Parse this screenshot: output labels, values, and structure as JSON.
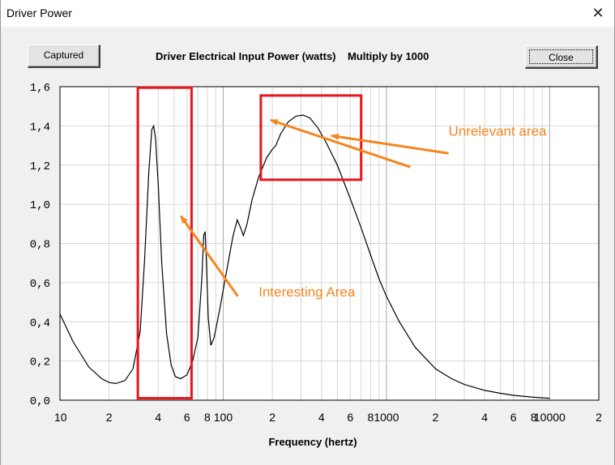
{
  "window": {
    "title": "Driver Power",
    "close_glyph": "✕"
  },
  "toolbar": {
    "captured_label": "Captured",
    "close_label": "Close"
  },
  "chart_data": {
    "type": "line",
    "title": "Driver Electrical Input Power (watts)    Multiply by 1000",
    "xlabel": "Frequency (hertz)",
    "ylabel": "",
    "x_scale": "log",
    "xlim": [
      10,
      20000
    ],
    "ylim": [
      0,
      1.6
    ],
    "grid": true,
    "y_ticks": [
      "0,0",
      "0,2",
      "0,4",
      "0,6",
      "0,8",
      "1,0",
      "1,2",
      "1,4",
      "1,6"
    ],
    "x_ticks": [
      {
        "value": 10,
        "label": "10"
      },
      {
        "value": 20,
        "label": "2"
      },
      {
        "value": 40,
        "label": "4"
      },
      {
        "value": 60,
        "label": "6"
      },
      {
        "value": 80,
        "label": "8"
      },
      {
        "value": 100,
        "label": "100"
      },
      {
        "value": 200,
        "label": "2"
      },
      {
        "value": 400,
        "label": "4"
      },
      {
        "value": 600,
        "label": "6"
      },
      {
        "value": 800,
        "label": "8"
      },
      {
        "value": 1000,
        "label": "1000"
      },
      {
        "value": 2000,
        "label": "2"
      },
      {
        "value": 4000,
        "label": "4"
      },
      {
        "value": 6000,
        "label": "6"
      },
      {
        "value": 8000,
        "label": "8"
      },
      {
        "value": 10000,
        "label": "10000"
      },
      {
        "value": 20000,
        "label": "2"
      }
    ],
    "series": [
      {
        "color": "#000000",
        "points": [
          [
            10,
            0.44
          ],
          [
            12,
            0.3
          ],
          [
            15,
            0.17
          ],
          [
            18,
            0.11
          ],
          [
            20,
            0.09
          ],
          [
            22,
            0.085
          ],
          [
            25,
            0.1
          ],
          [
            28,
            0.16
          ],
          [
            31,
            0.35
          ],
          [
            33,
            0.72
          ],
          [
            35,
            1.16
          ],
          [
            36.5,
            1.38
          ],
          [
            37.5,
            1.4
          ],
          [
            38.5,
            1.34
          ],
          [
            40,
            1.1
          ],
          [
            42,
            0.7
          ],
          [
            45,
            0.34
          ],
          [
            48,
            0.18
          ],
          [
            51,
            0.12
          ],
          [
            55,
            0.11
          ],
          [
            60,
            0.13
          ],
          [
            65,
            0.2
          ],
          [
            70,
            0.32
          ],
          [
            74,
            0.62
          ],
          [
            76,
            0.84
          ],
          [
            77.5,
            0.86
          ],
          [
            79,
            0.7
          ],
          [
            81,
            0.42
          ],
          [
            84,
            0.28
          ],
          [
            88,
            0.32
          ],
          [
            95,
            0.46
          ],
          [
            105,
            0.66
          ],
          [
            115,
            0.84
          ],
          [
            122,
            0.92
          ],
          [
            128,
            0.88
          ],
          [
            133,
            0.84
          ],
          [
            140,
            0.9
          ],
          [
            150,
            1.02
          ],
          [
            165,
            1.14
          ],
          [
            185,
            1.24
          ],
          [
            200,
            1.28
          ],
          [
            210,
            1.3
          ],
          [
            225,
            1.36
          ],
          [
            250,
            1.42
          ],
          [
            280,
            1.45
          ],
          [
            310,
            1.455
          ],
          [
            340,
            1.44
          ],
          [
            380,
            1.39
          ],
          [
            430,
            1.31
          ],
          [
            500,
            1.2
          ],
          [
            600,
            1.03
          ],
          [
            700,
            0.88
          ],
          [
            800,
            0.74
          ],
          [
            900,
            0.62
          ],
          [
            1000,
            0.53
          ],
          [
            1200,
            0.4
          ],
          [
            1500,
            0.27
          ],
          [
            2000,
            0.16
          ],
          [
            2500,
            0.11
          ],
          [
            3000,
            0.08
          ],
          [
            4000,
            0.05
          ],
          [
            5000,
            0.035
          ],
          [
            6000,
            0.025
          ],
          [
            8000,
            0.015
          ],
          [
            9000,
            0.012
          ],
          [
            10000,
            0.01
          ]
        ]
      }
    ],
    "annotations": [
      {
        "text": "Unrelevant area",
        "x": 2400,
        "y": 1.35
      },
      {
        "text": "Interesting Area",
        "x": 165,
        "y": 0.53
      }
    ],
    "highlight_boxes": [
      {
        "x0": 30,
        "x1": 64,
        "y0": 0.01,
        "y1": 1.595
      },
      {
        "x0": 170,
        "x1": 700,
        "y0": 1.125,
        "y1": 1.555
      }
    ],
    "arrows": [
      {
        "from": [
          2400,
          1.26
        ],
        "to": [
          460,
          1.35
        ]
      },
      {
        "from": [
          1400,
          1.19
        ],
        "to": [
          195,
          1.43
        ]
      },
      {
        "from": [
          123,
          0.53
        ],
        "to": [
          55,
          0.94
        ]
      }
    ],
    "colors": {
      "highlight": "#e8141b",
      "annotation": "#f5851f",
      "grid": "#d6d6d6"
    }
  }
}
